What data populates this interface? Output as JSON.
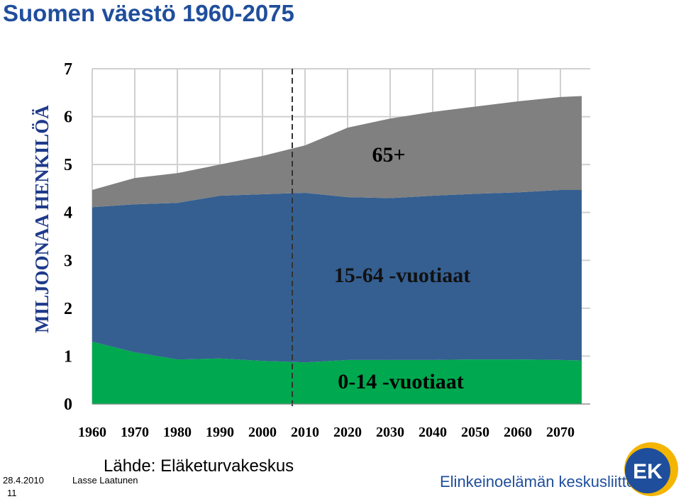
{
  "header": {
    "title": "Suomen väestö 1960-2075"
  },
  "chart_data": {
    "type": "stacked_area",
    "y_label": "MILJOONAA HENKILÖÄ",
    "x": [
      1960,
      1970,
      1980,
      1990,
      2000,
      2010,
      2020,
      2030,
      2040,
      2050,
      2060,
      2070,
      2075
    ],
    "series": [
      {
        "name": "0-14 -vuotiaat",
        "color": "#00a84f",
        "values": [
          1.3,
          1.08,
          0.93,
          0.95,
          0.9,
          0.87,
          0.92,
          0.92,
          0.92,
          0.93,
          0.93,
          0.92,
          0.91
        ]
      },
      {
        "name": "15-64 -vuotiaat",
        "color": "#355f91",
        "values": [
          2.81,
          3.09,
          3.27,
          3.4,
          3.48,
          3.54,
          3.4,
          3.38,
          3.43,
          3.46,
          3.49,
          3.55,
          3.56
        ]
      },
      {
        "name": "65+",
        "color": "#808080",
        "values": [
          0.36,
          0.55,
          0.62,
          0.65,
          0.8,
          0.99,
          1.45,
          1.66,
          1.75,
          1.82,
          1.9,
          1.94,
          1.96
        ]
      }
    ],
    "xlim": [
      1960,
      2077
    ],
    "xticks": [
      1960,
      1970,
      1980,
      1990,
      2000,
      2010,
      2020,
      2030,
      2040,
      2050,
      2060,
      2070
    ],
    "ylim": [
      0,
      7
    ],
    "yticks": [
      0,
      1,
      2,
      3,
      4,
      5,
      6,
      7
    ],
    "grid": true,
    "projection_start": 2007
  },
  "footer": {
    "source": "Lähde: Eläketurvakeskus",
    "date": "28.4.2010",
    "author": "Lasse Laatunen",
    "page": "11",
    "organization": "Elinkeinoelämän keskusliitto",
    "logo": "EK"
  }
}
